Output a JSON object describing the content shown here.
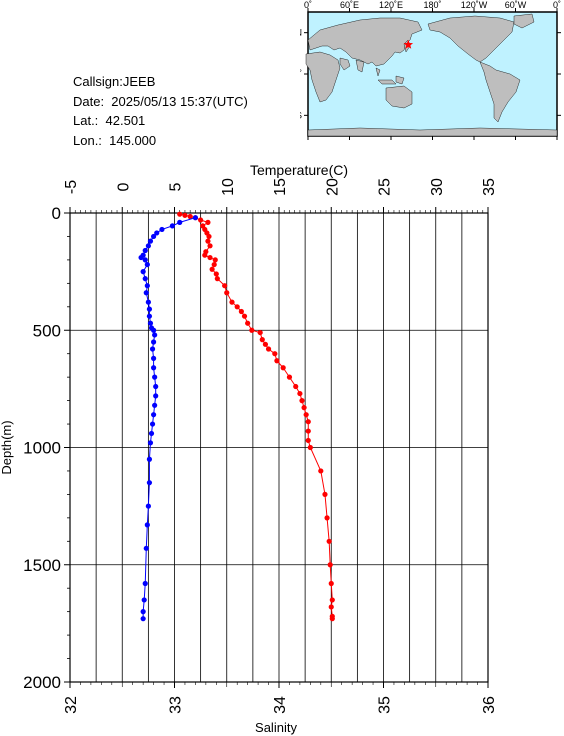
{
  "header": {
    "callsign": "Callsign:JEEB",
    "date": "Date:  2025/05/13 15:37(UTC)",
    "lat": "Lat.:  42.501",
    "lon": "Lon.:  145.000"
  },
  "map": {
    "lon_labels": [
      "0˚",
      "60˚E",
      "120˚E",
      "180˚",
      "120˚W",
      "60˚W",
      "0˚"
    ],
    "lat_labels": [
      "60˚N",
      "0˚",
      "60˚S"
    ],
    "station": {
      "lat": 42.501,
      "lon": 145.0
    },
    "colors": {
      "ocean": "#bff2ff",
      "land": "#bebebe",
      "station": "#ff0000"
    }
  },
  "chart_data": {
    "type": "line",
    "ylabel": "Depth(m)",
    "x_top_label": "Temperature(C)",
    "x_bottom_label": "Salinity",
    "ylim": [
      0,
      2000
    ],
    "temperature_range": [
      -5,
      35
    ],
    "salinity_range": [
      32,
      36
    ],
    "y_ticks": [
      "0",
      "500",
      "1000",
      "1500",
      "2000"
    ],
    "temperature_ticks": [
      "-5",
      "0",
      "5",
      "10",
      "15",
      "20",
      "25",
      "30",
      "35"
    ],
    "salinity_ticks": [
      "32",
      "33",
      "34",
      "35",
      "36"
    ],
    "grid": true,
    "series": [
      {
        "name": "Temperature",
        "color": "#ff0000",
        "axis": "temperature",
        "points": [
          [
            5.5,
            5
          ],
          [
            6.0,
            10
          ],
          [
            6.5,
            15
          ],
          [
            7.0,
            20
          ],
          [
            7.5,
            30
          ],
          [
            8.2,
            40
          ],
          [
            7.7,
            55
          ],
          [
            7.9,
            70
          ],
          [
            8.1,
            85
          ],
          [
            8.3,
            100
          ],
          [
            8.2,
            120
          ],
          [
            8.4,
            140
          ],
          [
            8.0,
            165
          ],
          [
            7.9,
            180
          ],
          [
            8.4,
            190
          ],
          [
            8.9,
            200
          ],
          [
            8.8,
            220
          ],
          [
            8.6,
            240
          ],
          [
            9.0,
            260
          ],
          [
            9.1,
            280
          ],
          [
            9.8,
            310
          ],
          [
            10.0,
            340
          ],
          [
            10.5,
            380
          ],
          [
            11.0,
            400
          ],
          [
            11.4,
            420
          ],
          [
            11.7,
            440
          ],
          [
            12.0,
            470
          ],
          [
            12.4,
            500
          ],
          [
            13.2,
            510
          ],
          [
            13.4,
            540
          ],
          [
            13.7,
            560
          ],
          [
            14.0,
            580
          ],
          [
            14.6,
            600
          ],
          [
            14.8,
            630
          ],
          [
            15.4,
            660
          ],
          [
            16.0,
            700
          ],
          [
            16.6,
            740
          ],
          [
            17.0,
            770
          ],
          [
            17.2,
            800
          ],
          [
            17.4,
            830
          ],
          [
            17.6,
            860
          ],
          [
            17.8,
            890
          ],
          [
            17.8,
            930
          ],
          [
            17.8,
            970
          ],
          [
            18.0,
            1000
          ],
          [
            19.0,
            1100
          ],
          [
            19.4,
            1200
          ],
          [
            19.6,
            1300
          ],
          [
            19.8,
            1400
          ],
          [
            19.9,
            1500
          ],
          [
            20.0,
            1580
          ],
          [
            20.1,
            1650
          ],
          [
            20.0,
            1680
          ],
          [
            20.1,
            1720
          ],
          [
            20.1,
            1730
          ]
        ]
      },
      {
        "name": "Salinity",
        "color": "#0000ff",
        "axis": "salinity",
        "points": [
          [
            33.2,
            20
          ],
          [
            33.05,
            40
          ],
          [
            32.98,
            55
          ],
          [
            32.88,
            70
          ],
          [
            32.83,
            85
          ],
          [
            32.8,
            100
          ],
          [
            32.77,
            120
          ],
          [
            32.75,
            140
          ],
          [
            32.72,
            160
          ],
          [
            32.7,
            180
          ],
          [
            32.68,
            190
          ],
          [
            32.72,
            200
          ],
          [
            32.74,
            220
          ],
          [
            32.7,
            250
          ],
          [
            32.72,
            280
          ],
          [
            32.74,
            310
          ],
          [
            32.73,
            340
          ],
          [
            32.75,
            380
          ],
          [
            32.76,
            410
          ],
          [
            32.76,
            440
          ],
          [
            32.77,
            470
          ],
          [
            32.78,
            490
          ],
          [
            32.8,
            500
          ],
          [
            32.81,
            520
          ],
          [
            32.8,
            550
          ],
          [
            32.79,
            580
          ],
          [
            32.8,
            620
          ],
          [
            32.8,
            660
          ],
          [
            32.81,
            700
          ],
          [
            32.82,
            740
          ],
          [
            32.82,
            780
          ],
          [
            32.81,
            820
          ],
          [
            32.8,
            860
          ],
          [
            32.79,
            900
          ],
          [
            32.78,
            940
          ],
          [
            32.77,
            980
          ],
          [
            32.76,
            1050
          ],
          [
            32.76,
            1150
          ],
          [
            32.75,
            1250
          ],
          [
            32.74,
            1330
          ],
          [
            32.73,
            1430
          ],
          [
            32.72,
            1580
          ],
          [
            32.71,
            1650
          ],
          [
            32.7,
            1700
          ],
          [
            32.7,
            1730
          ]
        ]
      }
    ]
  }
}
